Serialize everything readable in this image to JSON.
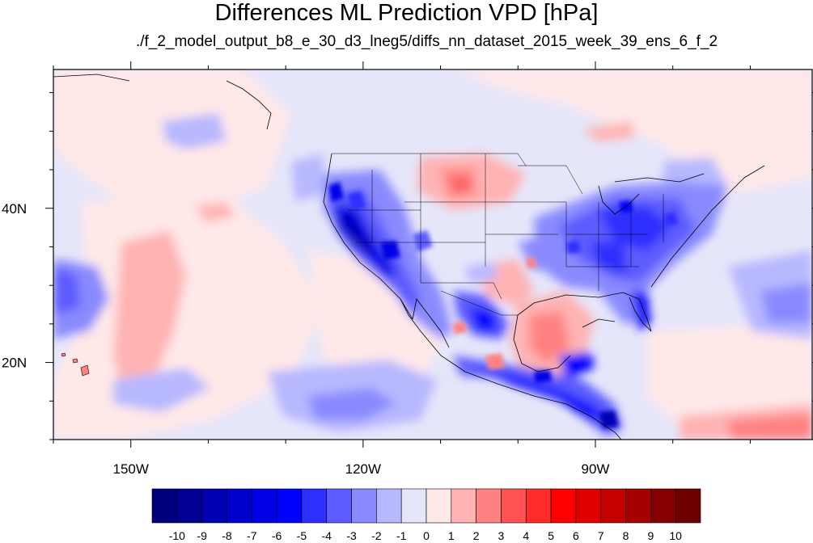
{
  "title": "Differences ML Prediction VPD [hPa]",
  "subtitle": "./f_2_model_output_b8_e_30_d3_lneg5/diffs_nn_dataset_2015_week_39_ens_6_f_2",
  "map": {
    "lon_range": [
      -160,
      -62
    ],
    "lat_range": [
      10,
      58
    ],
    "lon_ticks": [
      {
        "value": -150,
        "label": "150W"
      },
      {
        "value": -120,
        "label": "120W"
      },
      {
        "value": -90,
        "label": "90W"
      }
    ],
    "lat_ticks": [
      {
        "value": 40,
        "label": "40N"
      },
      {
        "value": 20,
        "label": "20N"
      }
    ]
  },
  "colorbar": {
    "labels": [
      "-10",
      "-9",
      "-8",
      "-7",
      "-6",
      "-5",
      "-4",
      "-3",
      "-2",
      "-1",
      "0",
      "1",
      "2",
      "3",
      "4",
      "5",
      "6",
      "7",
      "8",
      "9",
      "10"
    ],
    "colors": [
      "#00007f",
      "#000094",
      "#0000b2",
      "#0000cc",
      "#0000e6",
      "#0000ff",
      "#2e2eff",
      "#5c5cff",
      "#8a8aff",
      "#b8b8ff",
      "#e6e6fa",
      "#ffe8e8",
      "#ffb3b3",
      "#ff8282",
      "#ff5252",
      "#ff2a2a",
      "#ff0000",
      "#e00000",
      "#c40000",
      "#a60000",
      "#870000",
      "#700000"
    ]
  }
}
